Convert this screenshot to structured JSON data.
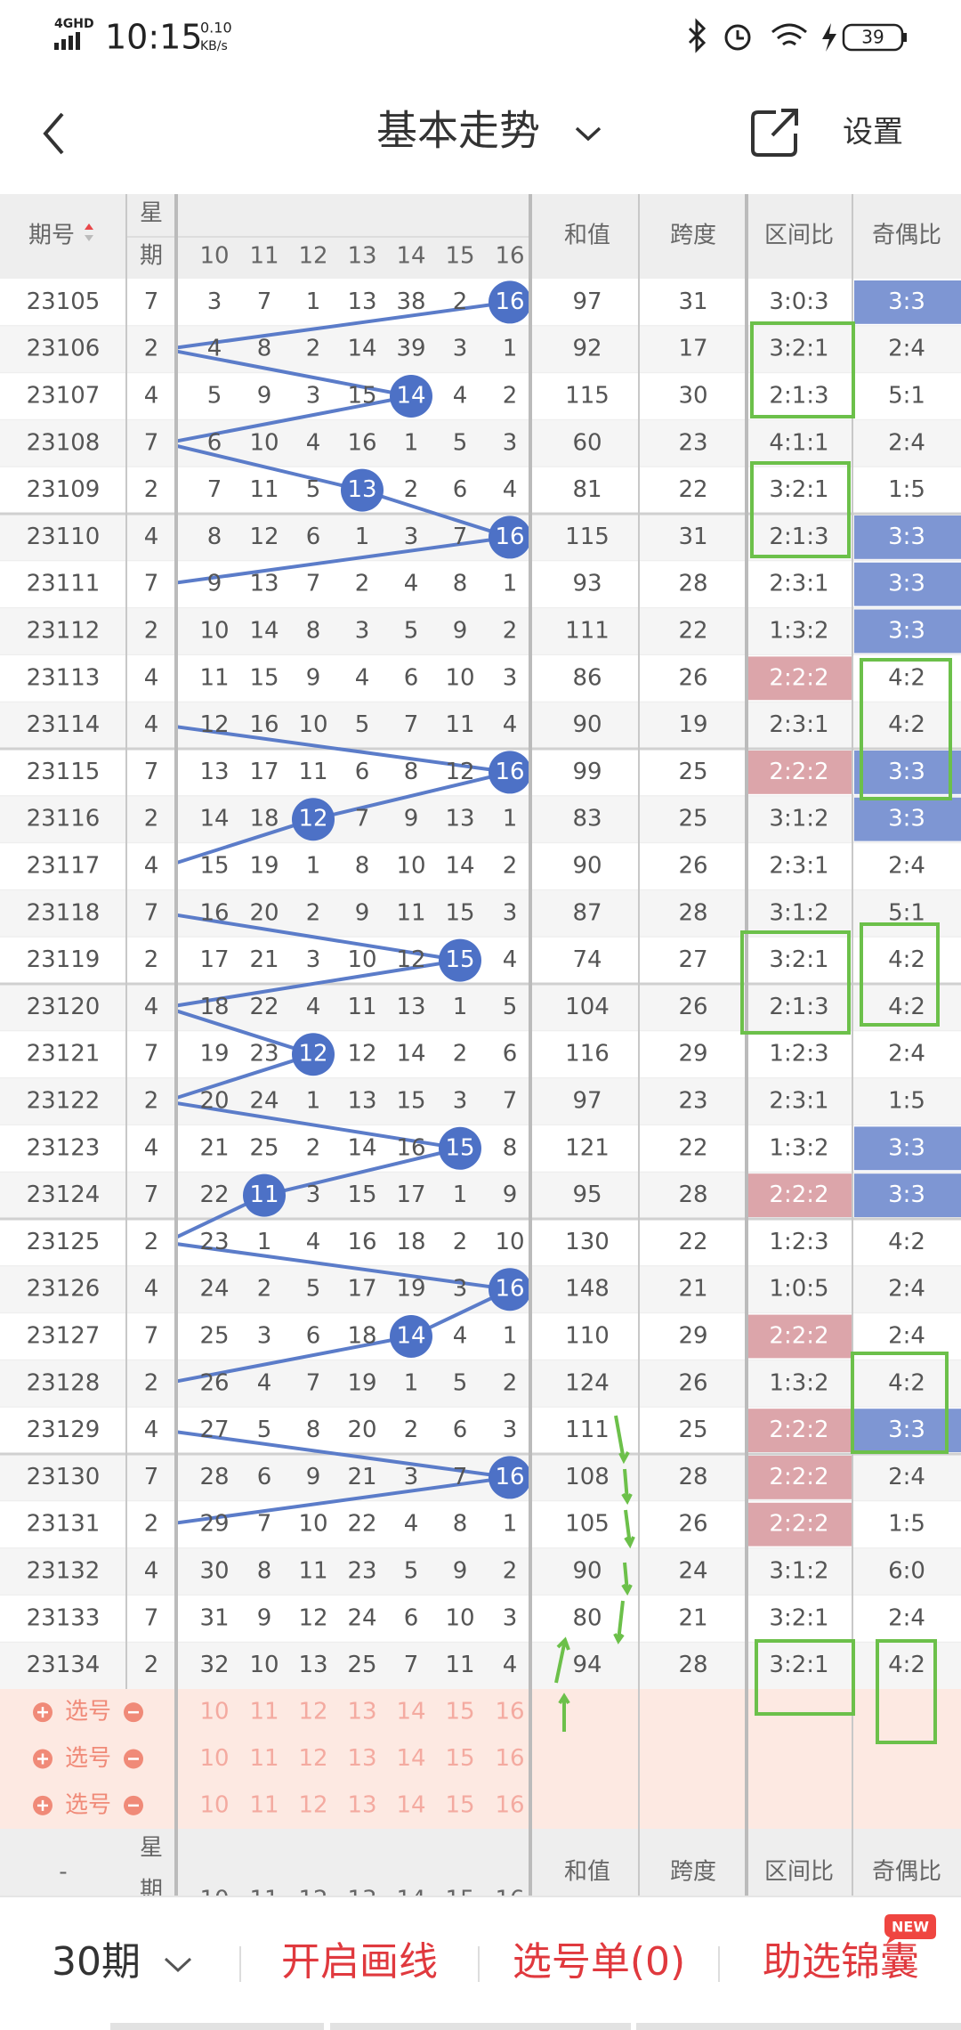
{
  "status_bar": {
    "network": "4GHD",
    "time": "10:15",
    "speed": "0.10",
    "speed_unit": "KB/s",
    "battery": "39"
  },
  "header": {
    "title": "基本走势",
    "settings": "设置"
  },
  "table": {
    "columns": {
      "issue": "期号",
      "weekday_top": "星",
      "weekday_bottom": "期",
      "numbers": [
        10,
        11,
        12,
        13,
        14,
        15,
        16
      ],
      "sum": "和值",
      "span": "跨度",
      "zone_ratio": "区间比",
      "odd_even": "奇偶比"
    },
    "zone_highlight_color": "#dca5aa",
    "odd_even_highlight_color": "#7e96d3",
    "ball_color": "#4d71c6",
    "line_color": "#5b7cc9",
    "rows": [
      {
        "issue": "23105",
        "weekday": 7,
        "cells": [
          3,
          7,
          1,
          13,
          38,
          2,
          {
            "ball": 16
          }
        ],
        "sum": 97,
        "span": 31,
        "zone": "3:0:3",
        "odd_even": "3:3"
      },
      {
        "issue": "23106",
        "weekday": 2,
        "cells": [
          4,
          8,
          2,
          14,
          39,
          3,
          1
        ],
        "sum": 92,
        "span": 17,
        "zone": "3:2:1",
        "odd_even": "2:4"
      },
      {
        "issue": "23107",
        "weekday": 4,
        "cells": [
          5,
          9,
          3,
          15,
          {
            "ball": 14
          },
          4,
          2
        ],
        "sum": 115,
        "span": 30,
        "zone": "2:1:3",
        "odd_even": "5:1"
      },
      {
        "issue": "23108",
        "weekday": 7,
        "cells": [
          6,
          10,
          4,
          16,
          1,
          5,
          3
        ],
        "sum": 60,
        "span": 23,
        "zone": "4:1:1",
        "odd_even": "2:4"
      },
      {
        "issue": "23109",
        "weekday": 2,
        "cells": [
          7,
          11,
          5,
          {
            "ball": 13
          },
          2,
          6,
          4
        ],
        "sum": 81,
        "span": 22,
        "zone": "3:2:1",
        "odd_even": "1:5"
      },
      {
        "issue": "23110",
        "weekday": 4,
        "cells": [
          8,
          12,
          6,
          1,
          3,
          7,
          {
            "ball": 16
          }
        ],
        "sum": 115,
        "span": 31,
        "zone": "2:1:3",
        "odd_even": "3:3"
      },
      {
        "issue": "23111",
        "weekday": 7,
        "cells": [
          9,
          13,
          7,
          2,
          4,
          8,
          1
        ],
        "sum": 93,
        "span": 28,
        "zone": "2:3:1",
        "odd_even": "3:3"
      },
      {
        "issue": "23112",
        "weekday": 2,
        "cells": [
          10,
          14,
          8,
          3,
          5,
          9,
          2
        ],
        "sum": 111,
        "span": 22,
        "zone": "1:3:2",
        "odd_even": "3:3"
      },
      {
        "issue": "23113",
        "weekday": 4,
        "cells": [
          11,
          15,
          9,
          4,
          6,
          10,
          3
        ],
        "sum": 86,
        "span": 26,
        "zone": "2:2:2",
        "odd_even": "4:2"
      },
      {
        "issue": "23114",
        "weekday": 4,
        "cells": [
          12,
          16,
          10,
          5,
          7,
          11,
          4
        ],
        "sum": 90,
        "span": 19,
        "zone": "2:3:1",
        "odd_even": "4:2"
      },
      {
        "issue": "23115",
        "weekday": 7,
        "cells": [
          13,
          17,
          11,
          6,
          8,
          12,
          {
            "ball": 16
          }
        ],
        "sum": 99,
        "span": 25,
        "zone": "2:2:2",
        "odd_even": "3:3"
      },
      {
        "issue": "23116",
        "weekday": 2,
        "cells": [
          14,
          18,
          {
            "ball": 12
          },
          7,
          9,
          13,
          1
        ],
        "sum": 83,
        "span": 25,
        "zone": "3:1:2",
        "odd_even": "3:3"
      },
      {
        "issue": "23117",
        "weekday": 4,
        "cells": [
          15,
          19,
          1,
          8,
          10,
          14,
          2
        ],
        "sum": 90,
        "span": 26,
        "zone": "2:3:1",
        "odd_even": "2:4"
      },
      {
        "issue": "23118",
        "weekday": 7,
        "cells": [
          16,
          20,
          2,
          9,
          11,
          15,
          3
        ],
        "sum": 87,
        "span": 28,
        "zone": "3:1:2",
        "odd_even": "5:1"
      },
      {
        "issue": "23119",
        "weekday": 2,
        "cells": [
          17,
          21,
          3,
          10,
          12,
          {
            "ball": 15
          },
          4
        ],
        "sum": 74,
        "span": 27,
        "zone": "3:2:1",
        "odd_even": "4:2"
      },
      {
        "issue": "23120",
        "weekday": 4,
        "cells": [
          18,
          22,
          4,
          11,
          13,
          1,
          5
        ],
        "sum": 104,
        "span": 26,
        "zone": "2:1:3",
        "odd_even": "4:2"
      },
      {
        "issue": "23121",
        "weekday": 7,
        "cells": [
          19,
          23,
          {
            "ball": 12
          },
          12,
          14,
          2,
          6
        ],
        "sum": 116,
        "span": 29,
        "zone": "1:2:3",
        "odd_even": "2:4"
      },
      {
        "issue": "23122",
        "weekday": 2,
        "cells": [
          20,
          24,
          1,
          13,
          15,
          3,
          7
        ],
        "sum": 97,
        "span": 23,
        "zone": "2:3:1",
        "odd_even": "1:5"
      },
      {
        "issue": "23123",
        "weekday": 4,
        "cells": [
          21,
          25,
          2,
          14,
          16,
          {
            "ball": 15
          },
          8
        ],
        "sum": 121,
        "span": 22,
        "zone": "1:3:2",
        "odd_even": "3:3"
      },
      {
        "issue": "23124",
        "weekday": 7,
        "cells": [
          22,
          {
            "ball": 11
          },
          3,
          15,
          17,
          1,
          9
        ],
        "sum": 95,
        "span": 28,
        "zone": "2:2:2",
        "odd_even": "3:3"
      },
      {
        "issue": "23125",
        "weekday": 2,
        "cells": [
          23,
          1,
          4,
          16,
          18,
          2,
          10
        ],
        "sum": 130,
        "span": 22,
        "zone": "1:2:3",
        "odd_even": "4:2"
      },
      {
        "issue": "23126",
        "weekday": 4,
        "cells": [
          24,
          2,
          5,
          17,
          19,
          3,
          {
            "ball": 16
          }
        ],
        "sum": 148,
        "span": 21,
        "zone": "1:0:5",
        "odd_even": "2:4"
      },
      {
        "issue": "23127",
        "weekday": 7,
        "cells": [
          25,
          3,
          6,
          18,
          {
            "ball": 14
          },
          4,
          1
        ],
        "sum": 110,
        "span": 29,
        "zone": "2:2:2",
        "odd_even": "2:4"
      },
      {
        "issue": "23128",
        "weekday": 2,
        "cells": [
          26,
          4,
          7,
          19,
          1,
          5,
          2
        ],
        "sum": 124,
        "span": 26,
        "zone": "1:3:2",
        "odd_even": "4:2"
      },
      {
        "issue": "23129",
        "weekday": 4,
        "cells": [
          27,
          5,
          8,
          20,
          2,
          6,
          3
        ],
        "sum": 111,
        "span": 25,
        "zone": "2:2:2",
        "odd_even": "3:3"
      },
      {
        "issue": "23130",
        "weekday": 7,
        "cells": [
          28,
          6,
          9,
          21,
          3,
          7,
          {
            "ball": 16
          }
        ],
        "sum": 108,
        "span": 28,
        "zone": "2:2:2",
        "odd_even": "2:4"
      },
      {
        "issue": "23131",
        "weekday": 2,
        "cells": [
          29,
          7,
          10,
          22,
          4,
          8,
          1
        ],
        "sum": 105,
        "span": 26,
        "zone": "2:2:2",
        "odd_even": "1:5"
      },
      {
        "issue": "23132",
        "weekday": 4,
        "cells": [
          30,
          8,
          11,
          23,
          5,
          9,
          2
        ],
        "sum": 90,
        "span": 24,
        "zone": "3:1:2",
        "odd_even": "6:0"
      },
      {
        "issue": "23133",
        "weekday": 7,
        "cells": [
          31,
          9,
          12,
          24,
          6,
          10,
          3
        ],
        "sum": 80,
        "span": 21,
        "zone": "3:2:1",
        "odd_even": "2:4"
      },
      {
        "issue": "23134",
        "weekday": 2,
        "cells": [
          32,
          10,
          13,
          25,
          7,
          11,
          4
        ],
        "sum": 94,
        "span": 28,
        "zone": "3:2:1",
        "odd_even": "4:2"
      }
    ]
  },
  "pick_rows": {
    "label": "选号",
    "count": 3
  },
  "footer_header": {
    "issue": "-"
  },
  "bottom_bar": {
    "periods": "30期",
    "draw": "开启画线",
    "pick_list": "选号单(0)",
    "assist": "助选锦囊",
    "badge": "NEW"
  }
}
